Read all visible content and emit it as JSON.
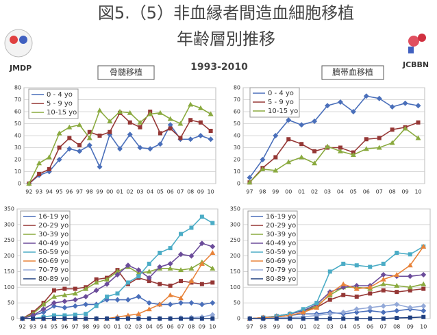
{
  "header": {
    "title": "図5.（5）非血縁者間造血細胞移植",
    "subtitle": "年齢層別推移",
    "left_org": "JMDP",
    "right_org": "JCBBN",
    "period": "1993-2010"
  },
  "chart_data": [
    {
      "type": "line",
      "title": "骨髄移植",
      "categories": [
        "92",
        "93",
        "94",
        "95",
        "96",
        "97",
        "98",
        "99",
        "00",
        "01",
        "02",
        "03",
        "04",
        "05",
        "06",
        "07",
        "08",
        "09",
        "10"
      ],
      "ylim": [
        0,
        80
      ],
      "yticks": [
        0,
        10,
        20,
        30,
        40,
        50,
        60,
        70,
        80
      ],
      "grid": true,
      "series": [
        {
          "name": "0 - 4 yo",
          "color": "#4a6fba",
          "values": [
            0,
            7,
            10,
            20,
            29,
            27,
            32,
            14,
            41,
            29,
            41,
            30,
            29,
            33,
            49,
            37,
            37,
            40,
            37
          ]
        },
        {
          "name": "5 - 9 yo",
          "color": "#953735",
          "values": [
            0,
            8,
            12,
            30,
            38,
            32,
            43,
            40,
            43,
            59,
            51,
            47,
            60,
            42,
            46,
            38,
            53,
            51,
            44
          ]
        },
        {
          "name": "10-15 yo",
          "color": "#8aaa3f",
          "values": [
            0,
            17,
            22,
            42,
            47,
            49,
            38,
            61,
            52,
            60,
            59,
            51,
            58,
            59,
            54,
            50,
            66,
            63,
            58
          ]
        }
      ]
    },
    {
      "type": "line",
      "title": "臍帯血移植",
      "categories": [
        "97",
        "98",
        "99",
        "00",
        "01",
        "02",
        "03",
        "04",
        "05",
        "06",
        "07",
        "08",
        "09",
        "10"
      ],
      "ylim": [
        0,
        80
      ],
      "yticks": [
        0,
        10,
        20,
        30,
        40,
        50,
        60,
        70,
        80
      ],
      "grid": true,
      "series": [
        {
          "name": "0 - 4 yo",
          "color": "#4a6fba",
          "values": [
            5,
            20,
            40,
            53,
            49,
            52,
            65,
            68,
            60,
            73,
            71,
            64,
            67,
            65
          ]
        },
        {
          "name": "5 - 9 yo",
          "color": "#953735",
          "values": [
            1,
            13,
            22,
            37,
            33,
            27,
            30,
            30,
            26,
            37,
            38,
            45,
            47,
            51
          ]
        },
        {
          "name": "10-15 yo",
          "color": "#8aaa3f",
          "values": [
            1,
            12,
            11,
            18,
            22,
            17,
            31,
            27,
            24,
            29,
            30,
            34,
            46,
            38
          ]
        }
      ]
    },
    {
      "type": "line",
      "categories": [
        "92",
        "93",
        "94",
        "95",
        "96",
        "97",
        "98",
        "99",
        "00",
        "01",
        "02",
        "03",
        "04",
        "05",
        "06",
        "07",
        "08",
        "09",
        "10"
      ],
      "ylim": [
        0,
        350
      ],
      "yticks": [
        0,
        50,
        100,
        150,
        200,
        250,
        300,
        350
      ],
      "grid": true,
      "series": [
        {
          "name": "16-19 yo",
          "color": "#4a6fba",
          "values": [
            0,
            10,
            20,
            40,
            35,
            40,
            45,
            45,
            60,
            60,
            60,
            70,
            50,
            45,
            45,
            50,
            50,
            45,
            50
          ]
        },
        {
          "name": "20-29 yo",
          "color": "#953735",
          "values": [
            0,
            20,
            50,
            90,
            95,
            95,
            100,
            125,
            130,
            155,
            110,
            130,
            120,
            110,
            105,
            120,
            115,
            110,
            115
          ]
        },
        {
          "name": "30-39 yo",
          "color": "#8aaa3f",
          "values": [
            0,
            15,
            45,
            70,
            75,
            80,
            95,
            115,
            125,
            150,
            165,
            145,
            150,
            160,
            160,
            155,
            160,
            180,
            160
          ]
        },
        {
          "name": "40-49 yo",
          "color": "#6b4c9a",
          "values": [
            0,
            10,
            30,
            50,
            55,
            60,
            70,
            90,
            110,
            140,
            170,
            155,
            130,
            165,
            175,
            205,
            200,
            240,
            230
          ]
        },
        {
          "name": "50-59 yo",
          "color": "#4bacc6",
          "values": [
            0,
            0,
            5,
            10,
            10,
            12,
            15,
            40,
            70,
            80,
            115,
            135,
            175,
            210,
            225,
            270,
            290,
            325,
            305
          ]
        },
        {
          "name": "60-69 yo",
          "color": "#e8833a",
          "values": [
            0,
            0,
            0,
            0,
            0,
            0,
            0,
            0,
            0,
            5,
            10,
            15,
            30,
            45,
            75,
            65,
            120,
            175,
            210
          ]
        },
        {
          "name": "70-79 yo",
          "color": "#93a9d8",
          "values": [
            0,
            0,
            0,
            0,
            0,
            0,
            0,
            0,
            0,
            0,
            0,
            0,
            0,
            0,
            0,
            2,
            3,
            5,
            12
          ]
        },
        {
          "name": "80-89 yo",
          "color": "#1f3f7f",
          "values": [
            0,
            0,
            0,
            0,
            0,
            0,
            0,
            0,
            0,
            0,
            0,
            0,
            0,
            0,
            0,
            0,
            0,
            0,
            0
          ]
        }
      ]
    },
    {
      "type": "line",
      "categories": [
        "97",
        "98",
        "99",
        "00",
        "01",
        "02",
        "03",
        "04",
        "05",
        "06",
        "07",
        "08",
        "09",
        "10"
      ],
      "ylim": [
        0,
        350
      ],
      "yticks": [
        0,
        50,
        100,
        150,
        200,
        250,
        300,
        350
      ],
      "grid": true,
      "series": [
        {
          "name": "16-19 yo",
          "color": "#4a6fba",
          "values": [
            0,
            2,
            5,
            10,
            15,
            15,
            20,
            15,
            20,
            25,
            20,
            25,
            30,
            25
          ]
        },
        {
          "name": "20-29 yo",
          "color": "#953735",
          "values": [
            0,
            3,
            8,
            15,
            25,
            35,
            60,
            75,
            70,
            80,
            90,
            85,
            90,
            95
          ]
        },
        {
          "name": "30-39 yo",
          "color": "#8aaa3f",
          "values": [
            0,
            3,
            8,
            15,
            25,
            40,
            75,
            100,
            100,
            95,
            110,
            105,
            100,
            110
          ]
        },
        {
          "name": "40-49 yo",
          "color": "#6b4c9a",
          "values": [
            0,
            3,
            8,
            15,
            25,
            45,
            85,
            100,
            105,
            105,
            140,
            135,
            135,
            140
          ]
        },
        {
          "name": "50-59 yo",
          "color": "#4bacc6",
          "values": [
            0,
            3,
            8,
            15,
            30,
            50,
            150,
            175,
            170,
            165,
            175,
            210,
            205,
            230
          ]
        },
        {
          "name": "60-69 yo",
          "color": "#e8833a",
          "values": [
            0,
            3,
            5,
            10,
            20,
            35,
            80,
            110,
            95,
            100,
            125,
            140,
            170,
            230
          ]
        },
        {
          "name": "70-79 yo",
          "color": "#93a9d8",
          "values": [
            0,
            0,
            2,
            3,
            5,
            10,
            15,
            20,
            30,
            35,
            40,
            45,
            35,
            40
          ]
        },
        {
          "name": "80-89 yo",
          "color": "#1f3f7f",
          "values": [
            0,
            0,
            0,
            0,
            0,
            0,
            0,
            0,
            0,
            0,
            0,
            2,
            3,
            5
          ]
        }
      ]
    }
  ]
}
